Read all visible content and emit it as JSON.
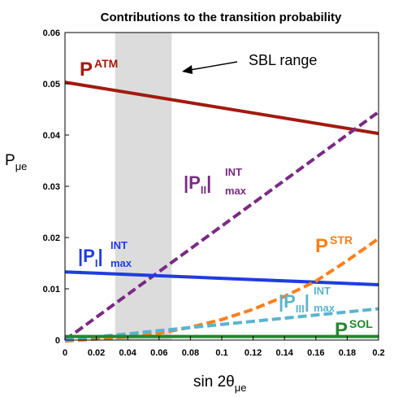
{
  "chart_data": {
    "type": "line",
    "title": "Contributions to the transition probability",
    "xlabel": {
      "main": "sin 2θ",
      "sub": "μe"
    },
    "ylabel": {
      "main": "P",
      "sub": "μe"
    },
    "xlim": [
      0,
      0.2
    ],
    "ylim": [
      0,
      0.06
    ],
    "x_ticks": [
      "0",
      "0.02",
      "0.04",
      "0.06",
      "0.08",
      "0.1",
      "0.12",
      "0.14",
      "0.16",
      "0.18",
      "0.2"
    ],
    "y_ticks": [
      "0",
      "0.01",
      "0.02",
      "0.03",
      "0.04",
      "0.05",
      "0.06"
    ],
    "shaded_region": {
      "x_range": [
        0.032,
        0.068
      ],
      "color": "#dcdcdc",
      "label": "SBL range"
    },
    "series": [
      {
        "key": "atm",
        "color": "#a21a0e",
        "dash": false,
        "x": [
          0,
          0.2
        ],
        "y": [
          0.0503,
          0.0403
        ]
      },
      {
        "key": "int2",
        "color": "#7b2a85",
        "dash": true,
        "x": [
          0,
          0.2
        ],
        "y": [
          0.0,
          0.0445
        ]
      },
      {
        "key": "int1",
        "color": "#1f3ddf",
        "dash": false,
        "x": [
          0,
          0.2
        ],
        "y": [
          0.0133,
          0.0108
        ]
      },
      {
        "key": "str",
        "color": "#ff7f1a",
        "dash": true,
        "x": [
          0,
          0.02,
          0.04,
          0.06,
          0.08,
          0.1,
          0.12,
          0.14,
          0.16,
          0.18,
          0.2
        ],
        "y": [
          -0.0002,
          0.0002,
          0.0006,
          0.0013,
          0.0025,
          0.004,
          0.006,
          0.0085,
          0.0115,
          0.0155,
          0.0198
        ]
      },
      {
        "key": "int3",
        "color": "#5ab4cf",
        "dash": true,
        "x": [
          0,
          0.2
        ],
        "y": [
          0.0,
          0.0061
        ]
      },
      {
        "key": "sol",
        "color": "#22882e",
        "dash": false,
        "x": [
          0,
          0.2
        ],
        "y": [
          0.0007,
          0.0007
        ]
      }
    ]
  },
  "annotations": {
    "atm": {
      "main": "P",
      "sup": "ATM",
      "color": "#a21a0e"
    },
    "int2": {
      "main": "|P",
      "sub": "II",
      "bar": "|",
      "sup": "INT",
      "sub2": "max",
      "color": "#7b2a85"
    },
    "int1": {
      "main": "|P",
      "sub": "I",
      "bar": "|",
      "sup": "INT",
      "sub2": "max",
      "color": "#1f3ddf"
    },
    "str": {
      "main": "P",
      "sup": "STR",
      "color": "#ff7f1a"
    },
    "int3": {
      "main": "|P",
      "sub": "III",
      "bar": "|",
      "sup": "INT",
      "sub2": "max",
      "color": "#5ab4cf"
    },
    "sol": {
      "main": "P",
      "sup": "SOL",
      "color": "#22882e"
    },
    "sbl": {
      "text": "SBL range",
      "color": "#000000"
    }
  }
}
